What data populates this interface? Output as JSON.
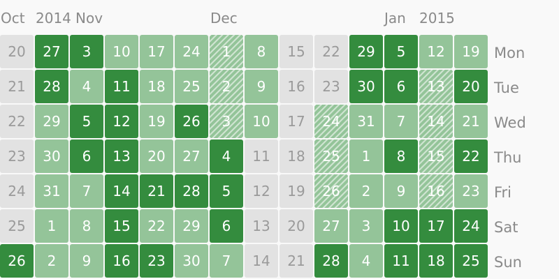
{
  "header": {
    "months": [
      "Oct",
      "Nov",
      "Dec",
      "Jan"
    ],
    "years": [
      "2014",
      "2015"
    ]
  },
  "weekdays": [
    "Mon",
    "Tue",
    "Wed",
    "Thu",
    "Fri",
    "Sat",
    "Sun"
  ],
  "colors": {
    "empty": "#e2e2e2",
    "light": "#94c499",
    "dark": "#348c3e",
    "hatched": "#94c499"
  },
  "legend_states": {
    "e": "empty",
    "l": "light",
    "d": "dark",
    "h": "hatched"
  },
  "grid": {
    "days": [
      [
        "20",
        "21",
        "22",
        "23",
        "24",
        "25",
        "26"
      ],
      [
        "27",
        "28",
        "29",
        "30",
        "31",
        "1",
        "2"
      ],
      [
        "3",
        "4",
        "5",
        "6",
        "7",
        "8",
        "9"
      ],
      [
        "10",
        "11",
        "12",
        "13",
        "14",
        "15",
        "16"
      ],
      [
        "17",
        "18",
        "19",
        "20",
        "21",
        "22",
        "23"
      ],
      [
        "24",
        "25",
        "26",
        "27",
        "28",
        "29",
        "30"
      ],
      [
        "1",
        "2",
        "3",
        "4",
        "5",
        "6",
        "7"
      ],
      [
        "8",
        "9",
        "10",
        "11",
        "12",
        "13",
        "14"
      ],
      [
        "15",
        "16",
        "17",
        "18",
        "19",
        "20",
        "21"
      ],
      [
        "22",
        "23",
        "24",
        "25",
        "26",
        "27",
        "28"
      ],
      [
        "29",
        "30",
        "31",
        "1",
        "2",
        "3",
        "4"
      ],
      [
        "5",
        "6",
        "7",
        "8",
        "9",
        "10",
        "11"
      ],
      [
        "12",
        "13",
        "14",
        "15",
        "16",
        "17",
        "18"
      ],
      [
        "19",
        "20",
        "21",
        "22",
        "23",
        "24",
        "25"
      ]
    ],
    "states": [
      [
        "e",
        "e",
        "e",
        "e",
        "e",
        "e",
        "d"
      ],
      [
        "d",
        "d",
        "l",
        "l",
        "l",
        "l",
        "l"
      ],
      [
        "d",
        "l",
        "d",
        "d",
        "l",
        "l",
        "l"
      ],
      [
        "l",
        "d",
        "d",
        "d",
        "d",
        "d",
        "d"
      ],
      [
        "l",
        "l",
        "l",
        "l",
        "d",
        "l",
        "d"
      ],
      [
        "l",
        "l",
        "d",
        "l",
        "d",
        "l",
        "l"
      ],
      [
        "h",
        "h",
        "h",
        "d",
        "d",
        "d",
        "l"
      ],
      [
        "l",
        "l",
        "l",
        "e",
        "e",
        "e",
        "e"
      ],
      [
        "e",
        "e",
        "e",
        "e",
        "e",
        "e",
        "e"
      ],
      [
        "e",
        "e",
        "h",
        "h",
        "h",
        "l",
        "d"
      ],
      [
        "d",
        "d",
        "l",
        "l",
        "l",
        "l",
        "l"
      ],
      [
        "d",
        "d",
        "l",
        "d",
        "l",
        "d",
        "d"
      ],
      [
        "l",
        "h",
        "h",
        "h",
        "h",
        "d",
        "d"
      ],
      [
        "l",
        "d",
        "l",
        "d",
        "l",
        "d",
        "d"
      ]
    ]
  }
}
